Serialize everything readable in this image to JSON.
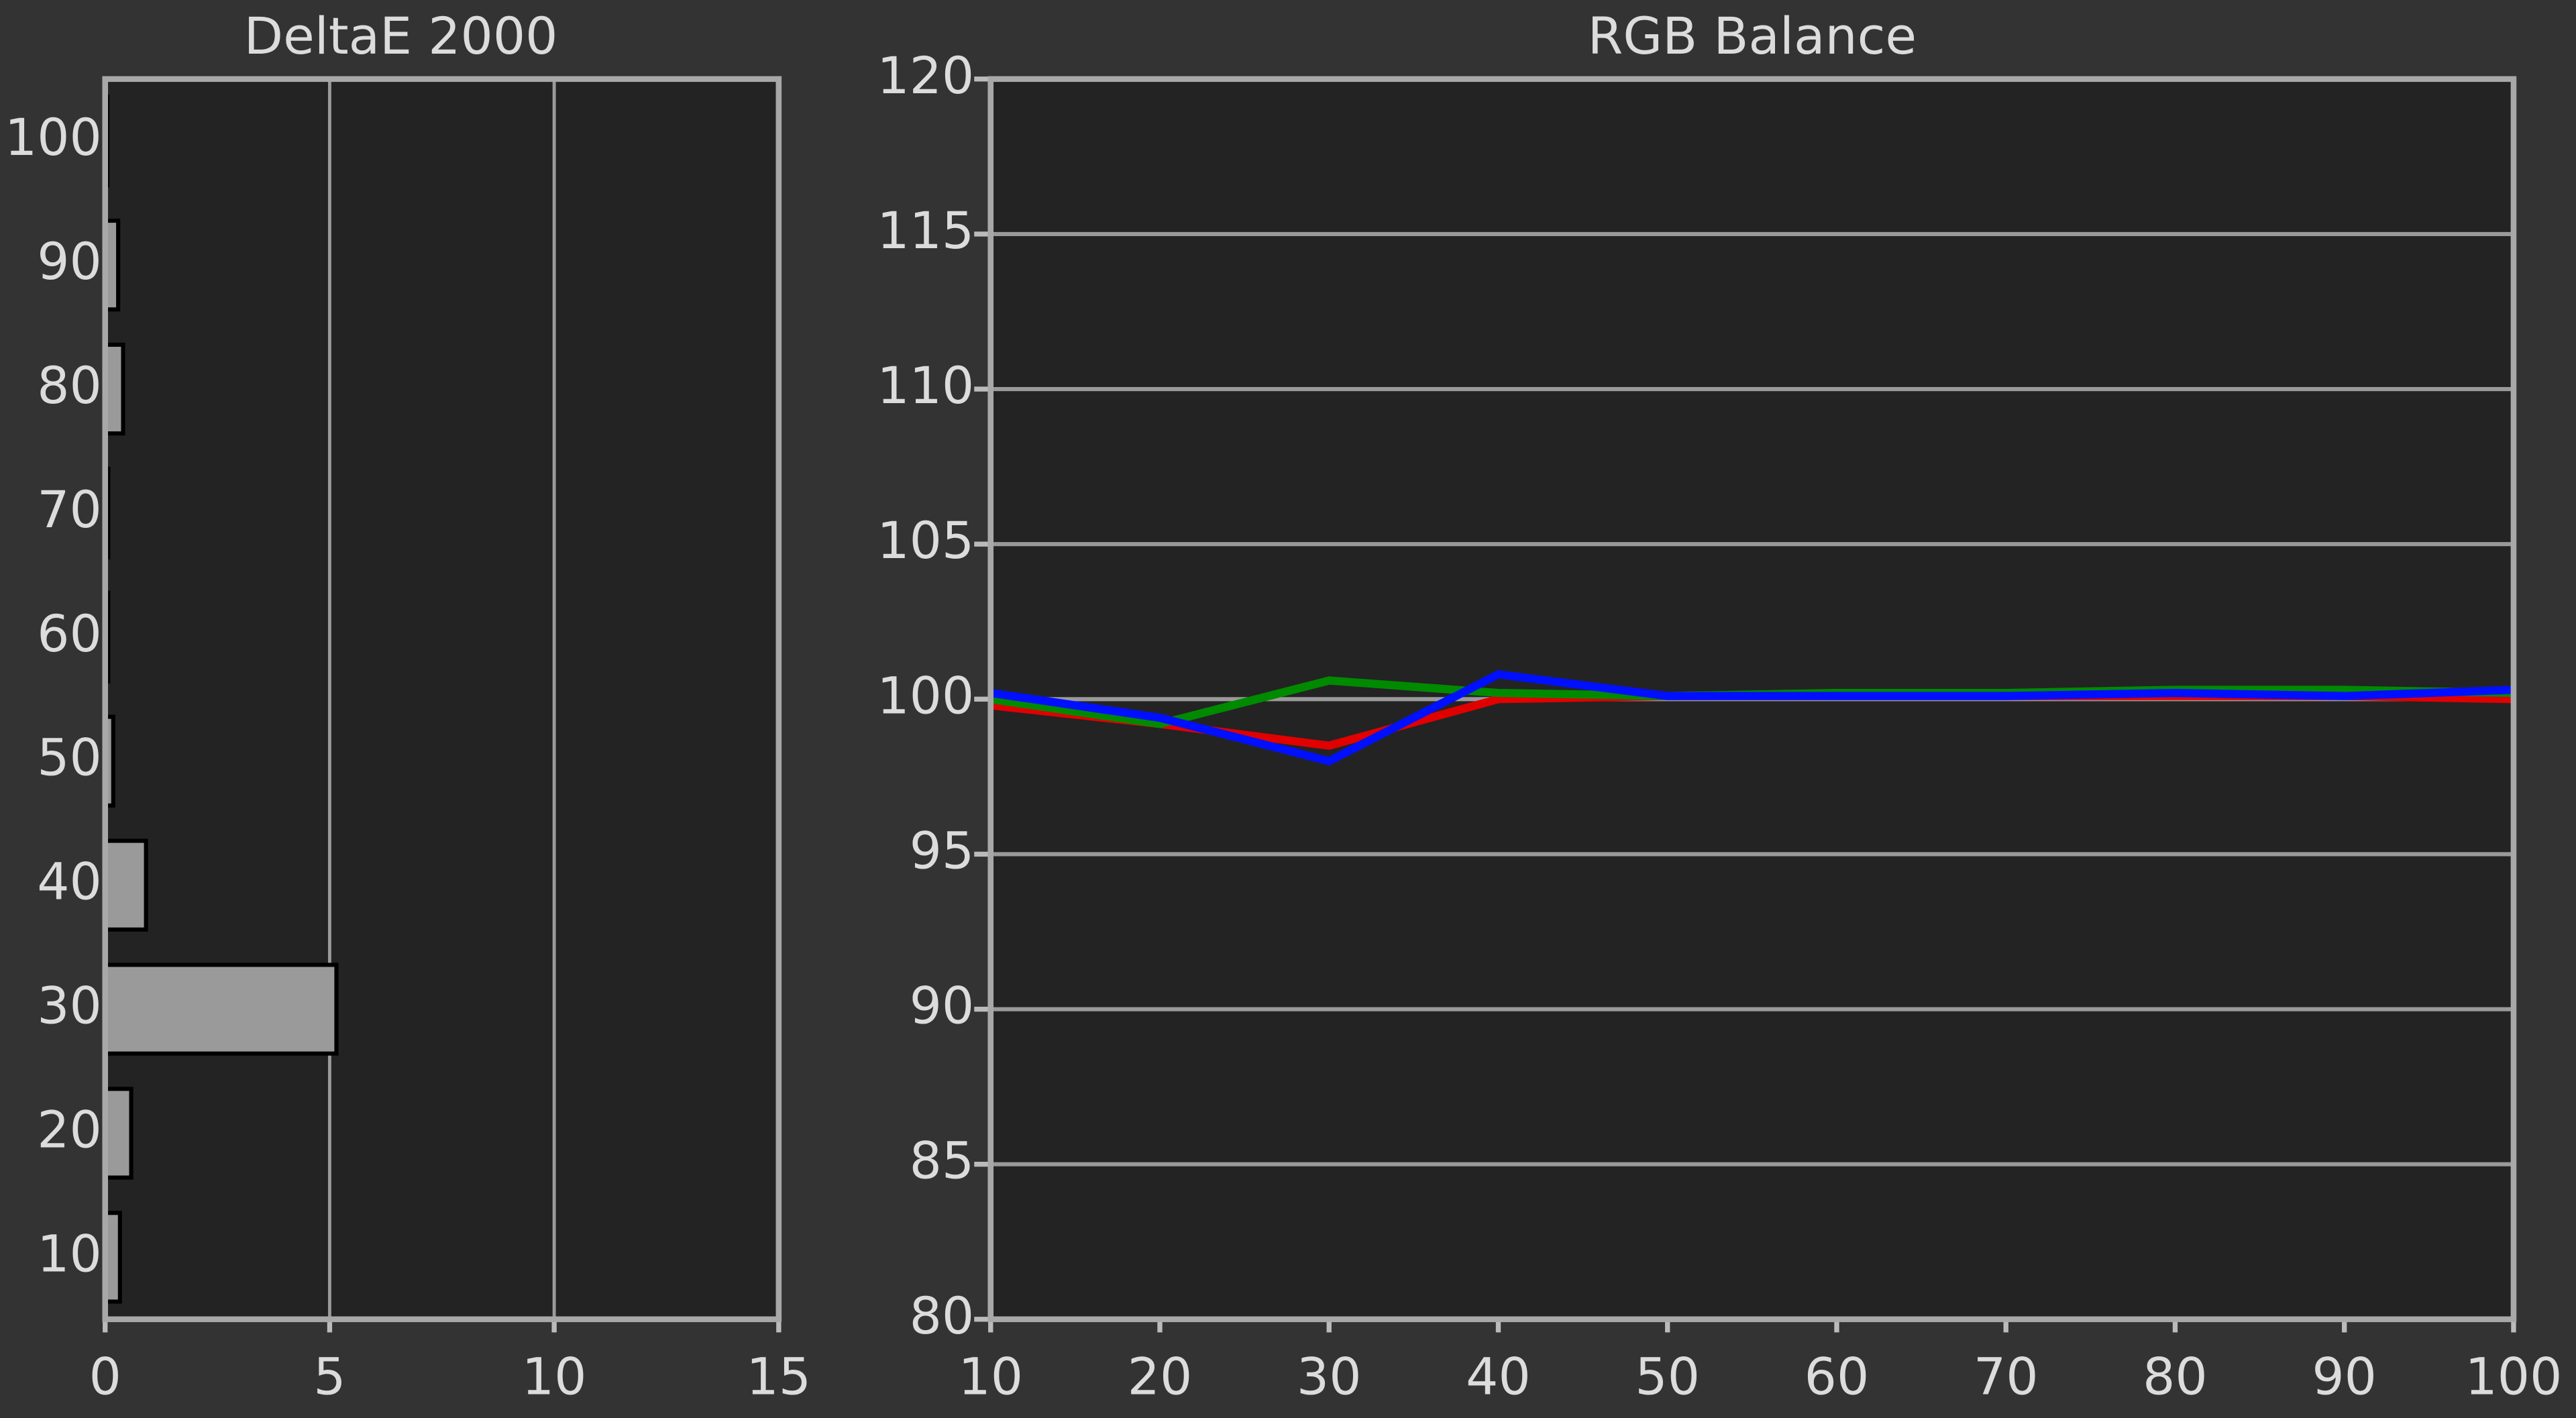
{
  "chart_data": [
    {
      "type": "hbar",
      "title": "DeltaE 2000",
      "categories": [
        10,
        20,
        30,
        40,
        50,
        60,
        70,
        80,
        90,
        100
      ],
      "values": [
        0.33,
        0.58,
        5.15,
        0.91,
        0.18,
        0.07,
        0.07,
        0.4,
        0.29,
        0.05
      ],
      "color": "#9a9a9a",
      "xlim": [
        0,
        15
      ],
      "xticks": [
        0,
        5,
        10,
        15
      ],
      "grid": true
    },
    {
      "type": "line",
      "title": "RGB Balance",
      "x": [
        10,
        20,
        30,
        40,
        50,
        60,
        70,
        80,
        90,
        100
      ],
      "series": [
        {
          "color": "#e00000",
          "values": [
            99.8,
            99.2,
            98.5,
            100.0,
            100.1,
            100.1,
            100.1,
            100.1,
            100.1,
            100.0
          ]
        },
        {
          "color": "#008a00",
          "values": [
            100.0,
            99.2,
            100.6,
            100.2,
            100.1,
            100.2,
            100.2,
            100.3,
            100.3,
            100.2
          ]
        },
        {
          "color": "#0010ff",
          "values": [
            100.2,
            99.4,
            98.0,
            100.8,
            100.1,
            100.1,
            100.1,
            100.2,
            100.1,
            100.3
          ]
        }
      ],
      "xlim": [
        10,
        100
      ],
      "xticks": [
        10,
        20,
        30,
        40,
        50,
        60,
        70,
        80,
        90,
        100
      ],
      "ylim": [
        80,
        120
      ],
      "yticks": [
        80,
        85,
        90,
        95,
        100,
        105,
        110,
        115,
        120
      ],
      "grid": true
    }
  ]
}
